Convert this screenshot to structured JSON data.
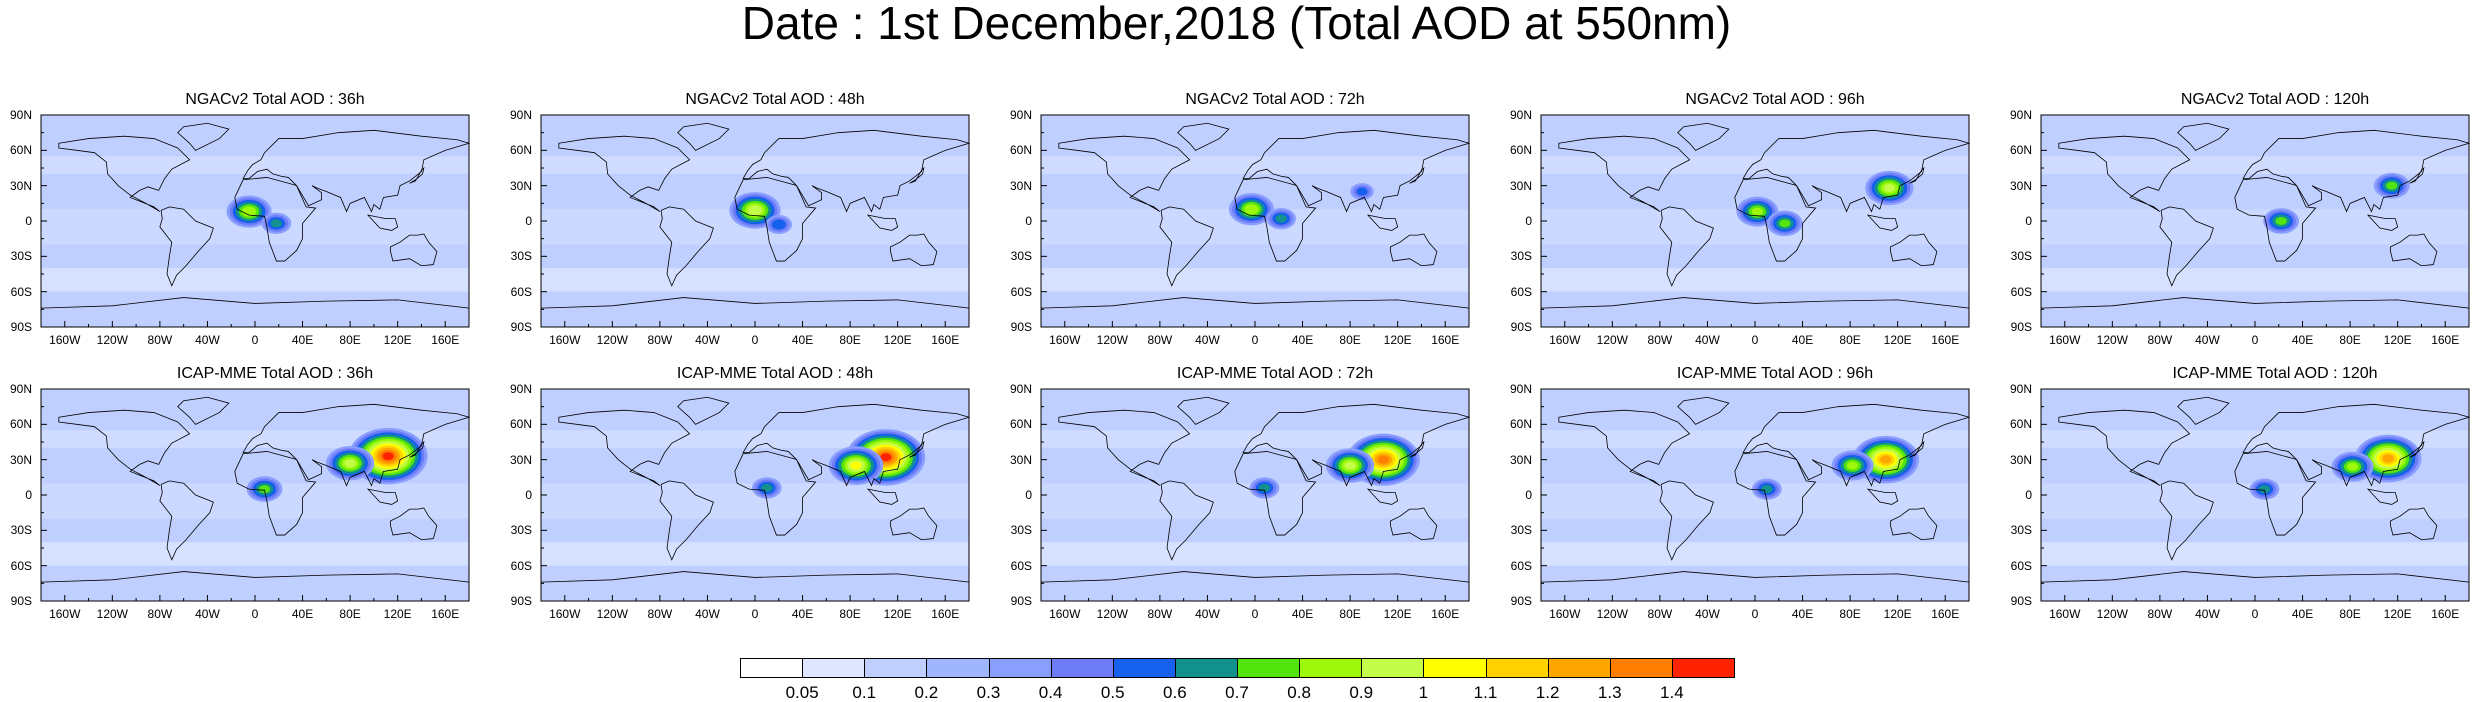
{
  "title": "Date : 1st December,2018 (Total AOD at 550nm)",
  "lat_labels": [
    "90N",
    "60N",
    "30N",
    "0",
    "30S",
    "60S",
    "90S"
  ],
  "lon_labels": [
    "160W",
    "120W",
    "80W",
    "40W",
    "0",
    "40E",
    "80E",
    "120E",
    "160E"
  ],
  "panels": [
    {
      "title": "NGACv2 Total AOD : 36h",
      "model": "NGACv2",
      "lead": "36h",
      "hotspots": [
        {
          "lon": -5,
          "lat": 8,
          "v": 0.85
        },
        {
          "lon": 18,
          "lat": -2,
          "v": 0.6
        }
      ]
    },
    {
      "title": "NGACv2 Total AOD : 48h",
      "model": "NGACv2",
      "lead": "48h",
      "hotspots": [
        {
          "lon": 0,
          "lat": 9,
          "v": 0.95
        },
        {
          "lon": 20,
          "lat": -3,
          "v": 0.55
        }
      ]
    },
    {
      "title": "NGACv2 Total AOD : 72h",
      "model": "NGACv2",
      "lead": "72h",
      "hotspots": [
        {
          "lon": -3,
          "lat": 10,
          "v": 0.85
        },
        {
          "lon": 22,
          "lat": 2,
          "v": 0.6
        },
        {
          "lon": 90,
          "lat": 25,
          "v": 0.5
        }
      ]
    },
    {
      "title": "NGACv2 Total AOD : 96h",
      "model": "NGACv2",
      "lead": "96h",
      "hotspots": [
        {
          "lon": 2,
          "lat": 8,
          "v": 0.8
        },
        {
          "lon": 25,
          "lat": -2,
          "v": 0.7
        },
        {
          "lon": 113,
          "lat": 28,
          "v": 0.9
        }
      ]
    },
    {
      "title": "NGACv2 Total AOD : 120h",
      "model": "NGACv2",
      "lead": "120h",
      "hotspots": [
        {
          "lon": 22,
          "lat": 0,
          "v": 0.7
        },
        {
          "lon": 115,
          "lat": 30,
          "v": 0.7
        }
      ]
    },
    {
      "title": "ICAP-MME Total AOD : 36h",
      "model": "ICAP-MME",
      "lead": "36h",
      "hotspots": [
        {
          "lon": 112,
          "lat": 33,
          "v": 1.4
        },
        {
          "lon": 80,
          "lat": 27,
          "v": 0.9
        },
        {
          "lon": 8,
          "lat": 5,
          "v": 0.7
        }
      ]
    },
    {
      "title": "ICAP-MME Total AOD : 48h",
      "model": "ICAP-MME",
      "lead": "48h",
      "hotspots": [
        {
          "lon": 110,
          "lat": 32,
          "v": 1.4
        },
        {
          "lon": 85,
          "lat": 25,
          "v": 1.0
        },
        {
          "lon": 10,
          "lat": 6,
          "v": 0.6
        }
      ]
    },
    {
      "title": "ICAP-MME Total AOD : 72h",
      "model": "ICAP-MME",
      "lead": "72h",
      "hotspots": [
        {
          "lon": 108,
          "lat": 30,
          "v": 1.3
        },
        {
          "lon": 80,
          "lat": 25,
          "v": 0.9
        },
        {
          "lon": 8,
          "lat": 6,
          "v": 0.6
        }
      ]
    },
    {
      "title": "ICAP-MME Total AOD : 96h",
      "model": "ICAP-MME",
      "lead": "96h",
      "hotspots": [
        {
          "lon": 110,
          "lat": 30,
          "v": 1.2
        },
        {
          "lon": 82,
          "lat": 25,
          "v": 0.8
        },
        {
          "lon": 10,
          "lat": 5,
          "v": 0.6
        }
      ]
    },
    {
      "title": "ICAP-MME Total AOD : 120h",
      "model": "ICAP-MME",
      "lead": "120h",
      "hotspots": [
        {
          "lon": 112,
          "lat": 31,
          "v": 1.2
        },
        {
          "lon": 82,
          "lat": 24,
          "v": 0.8
        },
        {
          "lon": 8,
          "lat": 5,
          "v": 0.6
        }
      ]
    }
  ],
  "colorbar": {
    "labels": [
      "0.05",
      "0.1",
      "0.2",
      "0.3",
      "0.4",
      "0.5",
      "0.6",
      "0.7",
      "0.8",
      "0.9",
      "1",
      "1.1",
      "1.2",
      "1.3",
      "1.4"
    ],
    "colors": [
      "#ffffff",
      "#dfe7ff",
      "#bfcfff",
      "#9fb6ff",
      "#8a9eff",
      "#6f7cf7",
      "#1560ec",
      "#13918e",
      "#53e40e",
      "#9ef80b",
      "#c4fc4a",
      "#ffff00",
      "#ffd200",
      "#ffa500",
      "#ff7e00",
      "#ff2200"
    ]
  }
}
